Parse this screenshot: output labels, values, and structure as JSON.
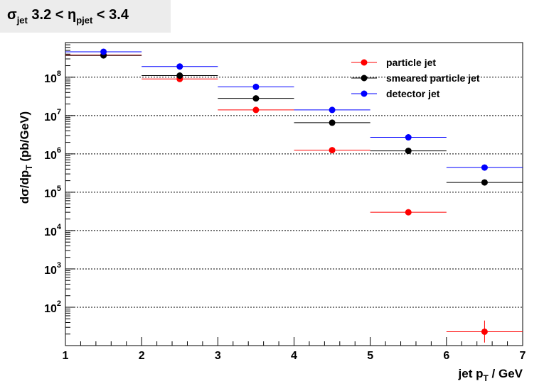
{
  "title": {
    "sym_sigma": "σ",
    "sub_jet": "jet",
    "range_left": " 3.2 < ",
    "sym_eta": "η",
    "sub_pjet": "pjet",
    "range_right": " < 3.4"
  },
  "chart_data": {
    "type": "scatter",
    "x_axis": {
      "label_main": "jet p",
      "label_sub": "T",
      "label_unit": " / GeV",
      "range": [
        1,
        7
      ],
      "ticks": [
        "1",
        "2",
        "3",
        "4",
        "5",
        "6",
        "7"
      ]
    },
    "y_axis": {
      "scale": "log",
      "label_main": "dσ/dp",
      "label_sub": "T",
      "label_unit": " (pb/GeV)",
      "range": [
        10,
        800000000
      ],
      "ticks": [
        {
          "value": 100,
          "mant": "10",
          "exp": "2"
        },
        {
          "value": 1000,
          "mant": "10",
          "exp": "3"
        },
        {
          "value": 10000,
          "mant": "10",
          "exp": "4"
        },
        {
          "value": 100000,
          "mant": "10",
          "exp": "5"
        },
        {
          "value": 1000000,
          "mant": "10",
          "exp": "6"
        },
        {
          "value": 10000000,
          "mant": "10",
          "exp": "7"
        },
        {
          "value": 100000000,
          "mant": "10",
          "exp": "8"
        }
      ],
      "grid": true
    },
    "legend_position": "top-right",
    "series": [
      {
        "name": "particle jet",
        "color": "#ff0000",
        "points": [
          {
            "x": 1.5,
            "xerr": 0.5,
            "y": 380000000
          },
          {
            "x": 2.5,
            "xerr": 0.5,
            "y": 90000000
          },
          {
            "x": 3.5,
            "xerr": 0.5,
            "y": 14000000
          },
          {
            "x": 4.5,
            "xerr": 0.5,
            "y": 1250000
          },
          {
            "x": 5.5,
            "xerr": 0.5,
            "y": 30000
          },
          {
            "x": 6.5,
            "xerr": 0.5,
            "y": 23,
            "ylo": 12,
            "yhi": 45
          }
        ]
      },
      {
        "name": "smeared particle jet",
        "color": "#000000",
        "points": [
          {
            "x": 1.5,
            "xerr": 0.5,
            "y": 370000000
          },
          {
            "x": 2.5,
            "xerr": 0.5,
            "y": 110000000
          },
          {
            "x": 3.5,
            "xerr": 0.5,
            "y": 28000000
          },
          {
            "x": 4.5,
            "xerr": 0.5,
            "y": 6500000
          },
          {
            "x": 5.5,
            "xerr": 0.5,
            "y": 1200000
          },
          {
            "x": 6.5,
            "xerr": 0.5,
            "y": 180000
          }
        ]
      },
      {
        "name": "detector jet",
        "color": "#0000ff",
        "points": [
          {
            "x": 1.5,
            "xerr": 0.5,
            "y": 460000000
          },
          {
            "x": 2.5,
            "xerr": 0.5,
            "y": 190000000
          },
          {
            "x": 3.5,
            "xerr": 0.5,
            "y": 56000000
          },
          {
            "x": 4.5,
            "xerr": 0.5,
            "y": 14000000
          },
          {
            "x": 5.5,
            "xerr": 0.5,
            "y": 2700000
          },
          {
            "x": 6.5,
            "xerr": 0.5,
            "y": 440000
          }
        ]
      }
    ]
  }
}
